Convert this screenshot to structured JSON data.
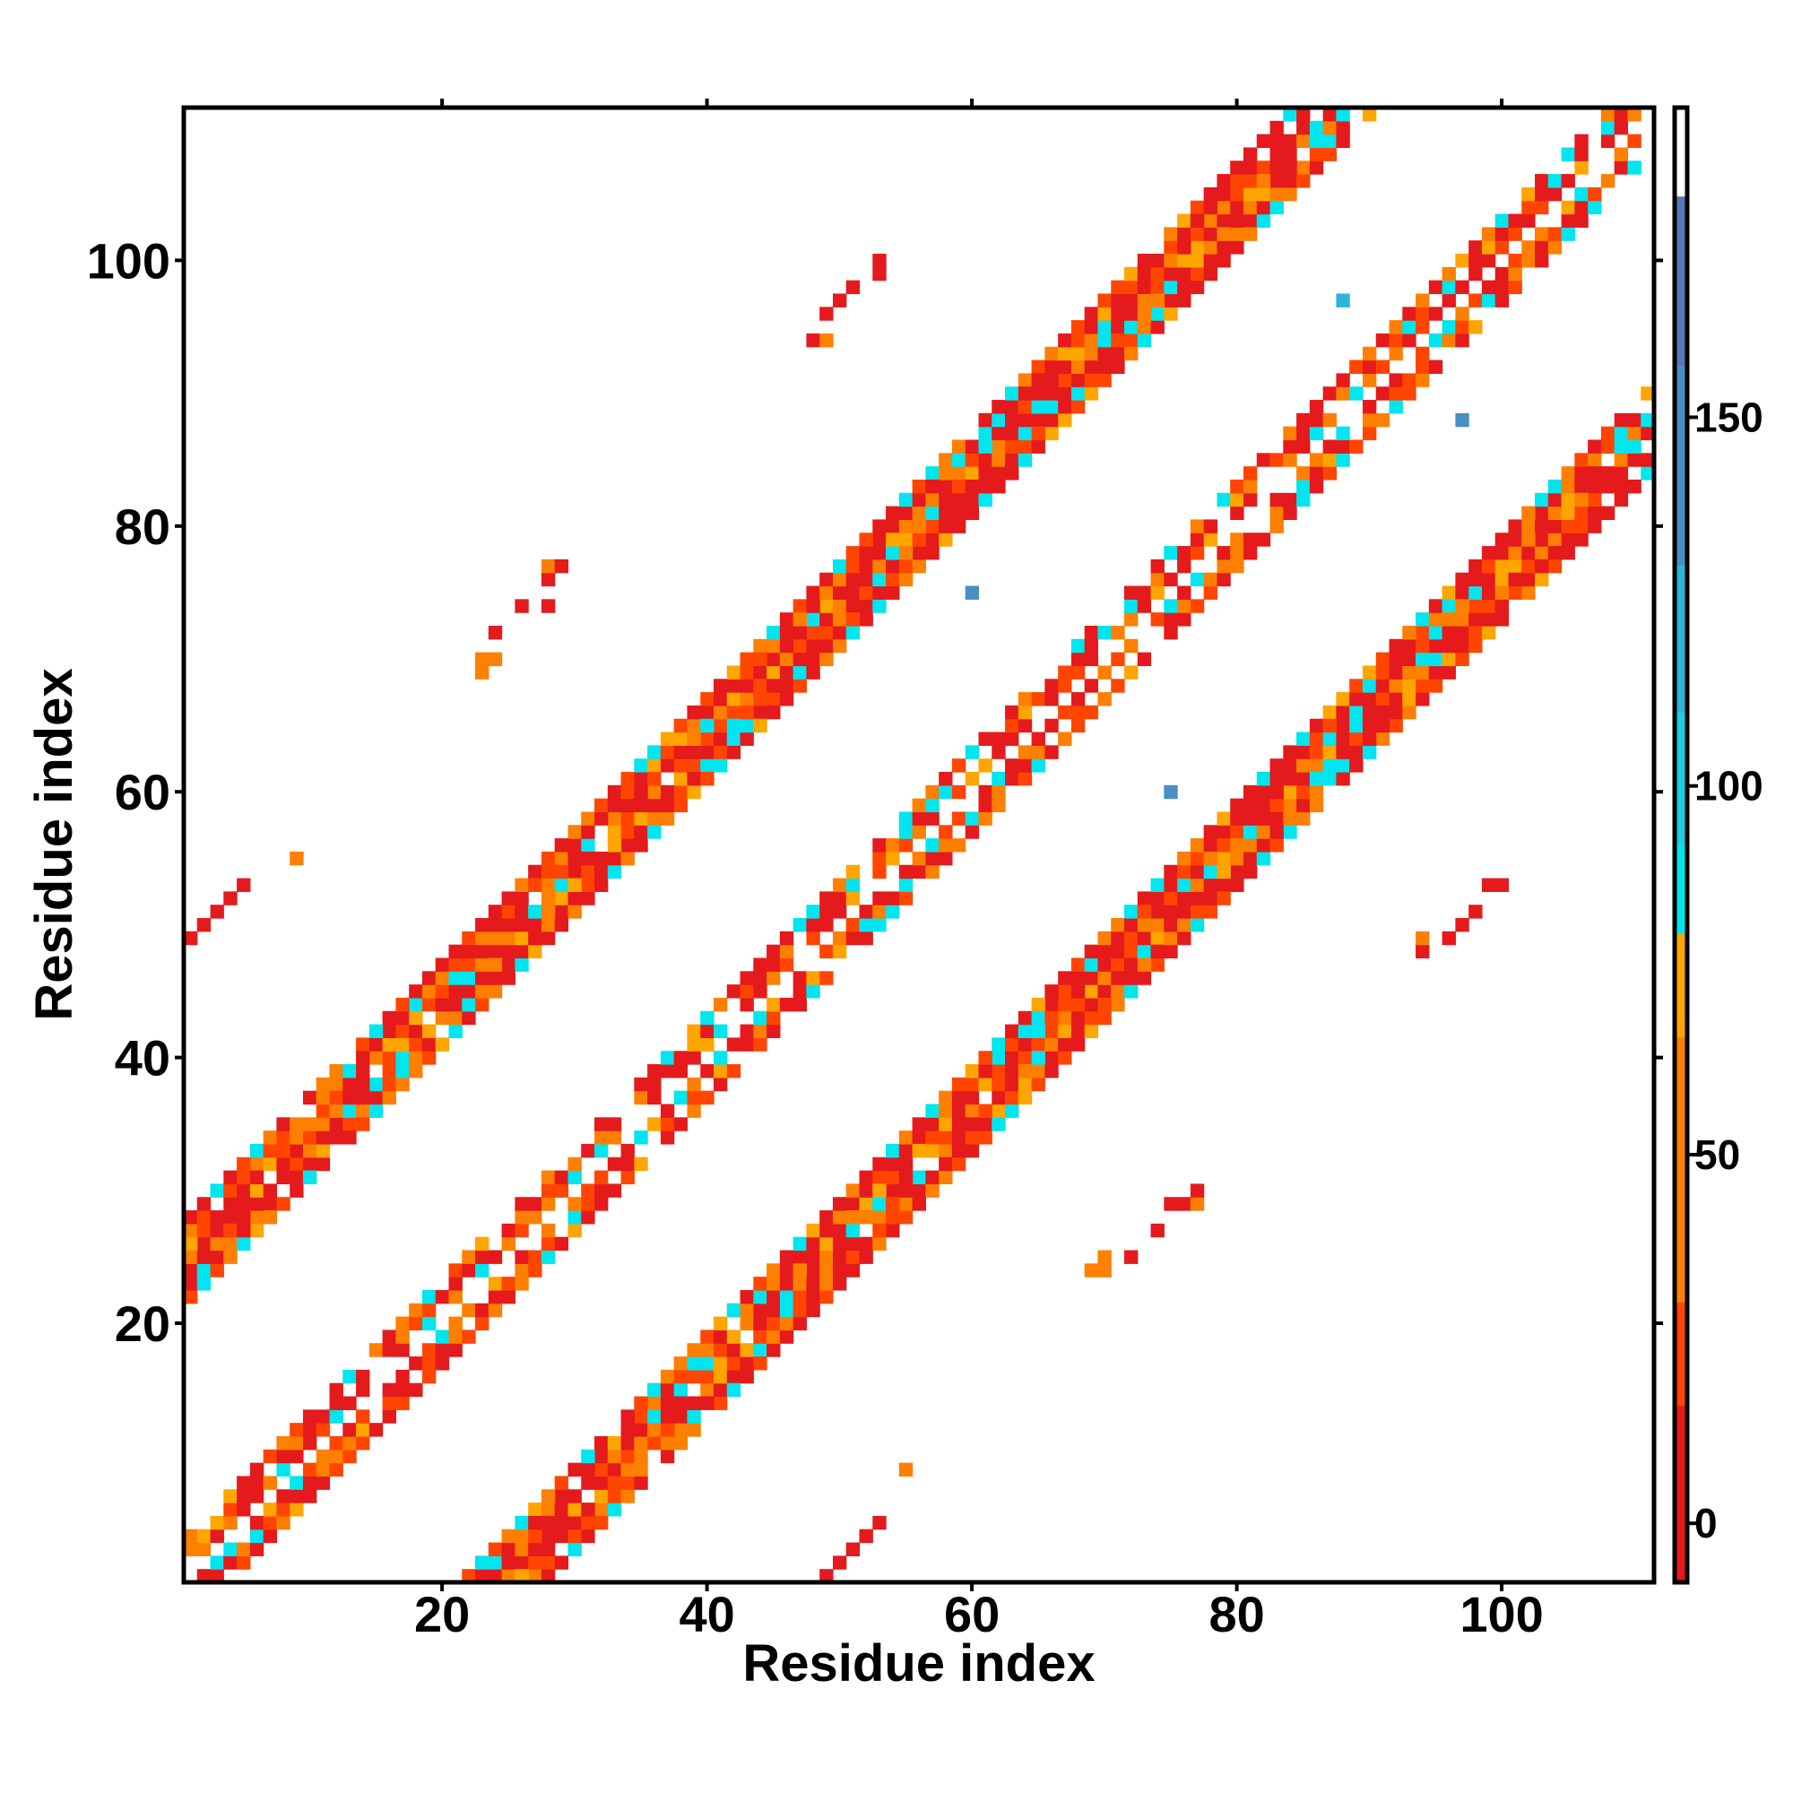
{
  "chart_data": {
    "type": "heatmap",
    "title": "",
    "xlabel": "Residue index",
    "ylabel": "Residue index",
    "xlim": [
      0.5,
      111.5
    ],
    "ylim": [
      0.5,
      111.5
    ],
    "xticks": [
      20,
      40,
      60,
      80,
      100
    ],
    "yticks": [
      20,
      40,
      60,
      80,
      100
    ],
    "colorbar": {
      "range": [
        -8,
        192
      ],
      "ticks": [
        0,
        50,
        100,
        150
      ],
      "bins": [
        {
          "from": -8,
          "to": 16,
          "color": "#e41a1c"
        },
        {
          "from": 16,
          "to": 30,
          "color": "#ff4500"
        },
        {
          "from": 30,
          "to": 66,
          "color": "#ff7f00"
        },
        {
          "from": 66,
          "to": 80,
          "color": "#ffa500"
        },
        {
          "from": 80,
          "to": 92,
          "color": "#00e5ee"
        },
        {
          "from": 92,
          "to": 110,
          "color": "#1ecde0"
        },
        {
          "from": 110,
          "to": 130,
          "color": "#2cb5d8"
        },
        {
          "from": 130,
          "to": 157,
          "color": "#4a8fc4"
        },
        {
          "from": 157,
          "to": 180,
          "color": "#5b77b8"
        },
        {
          "from": 180,
          "to": 192,
          "color": "#ffffff"
        }
      ]
    },
    "grid": false,
    "legend": "colorbar-right",
    "diagonal_bands": [
      {
        "i_start": 1,
        "i_end": 110,
        "offset": 0,
        "half_width": 3
      },
      {
        "i_start": 1,
        "i_end": 60,
        "offset": 24,
        "half_width": 3
      },
      {
        "i_start": 24,
        "i_end": 83,
        "offset": -24,
        "half_width": 3
      },
      {
        "i_start": 47,
        "i_end": 83,
        "offset": 24,
        "half_width": 3
      },
      {
        "i_start": 67,
        "i_end": 107,
        "offset": -24,
        "half_width": 3
      },
      {
        "i_start": 70,
        "i_end": 107,
        "offset": 24,
        "half_width": 3
      },
      {
        "i_start": 89,
        "i_end": 107,
        "offset": -24,
        "half_width": 3
      }
    ],
    "sparse_cells": [
      {
        "x": 1,
        "y": 49,
        "v": 5
      },
      {
        "x": 2,
        "y": 50,
        "v": 5
      },
      {
        "x": 3,
        "y": 51,
        "v": 5
      },
      {
        "x": 4,
        "y": 52,
        "v": 5
      },
      {
        "x": 5,
        "y": 53,
        "v": 5
      },
      {
        "x": 9,
        "y": 55,
        "v": 50
      },
      {
        "x": 23,
        "y": 69,
        "v": 50
      },
      {
        "x": 23,
        "y": 70,
        "v": 50
      },
      {
        "x": 24,
        "y": 70,
        "v": 50
      },
      {
        "x": 24,
        "y": 72,
        "v": 5
      },
      {
        "x": 26,
        "y": 74,
        "v": 5
      },
      {
        "x": 28,
        "y": 74,
        "v": 5
      },
      {
        "x": 28,
        "y": 76,
        "v": 5
      },
      {
        "x": 28,
        "y": 77,
        "v": 50
      },
      {
        "x": 29,
        "y": 77,
        "v": 5
      },
      {
        "x": 48,
        "y": 94,
        "v": 5
      },
      {
        "x": 49,
        "y": 94,
        "v": 50
      },
      {
        "x": 49,
        "y": 96,
        "v": 5
      },
      {
        "x": 50,
        "y": 97,
        "v": 5
      },
      {
        "x": 51,
        "y": 98,
        "v": 5
      },
      {
        "x": 53,
        "y": 99,
        "v": 5
      },
      {
        "x": 53,
        "y": 100,
        "v": 5
      },
      {
        "x": 60,
        "y": 75,
        "v": 140
      },
      {
        "x": 75,
        "y": 60,
        "v": 140
      },
      {
        "x": 49,
        "y": 1,
        "v": 5
      },
      {
        "x": 50,
        "y": 2,
        "v": 5
      },
      {
        "x": 51,
        "y": 3,
        "v": 5
      },
      {
        "x": 52,
        "y": 4,
        "v": 5
      },
      {
        "x": 53,
        "y": 5,
        "v": 5
      },
      {
        "x": 55,
        "y": 9,
        "v": 50
      },
      {
        "x": 69,
        "y": 24,
        "v": 50
      },
      {
        "x": 70,
        "y": 24,
        "v": 50
      },
      {
        "x": 70,
        "y": 25,
        "v": 50
      },
      {
        "x": 72,
        "y": 25,
        "v": 5
      },
      {
        "x": 74,
        "y": 27,
        "v": 5
      },
      {
        "x": 75,
        "y": 29,
        "v": 5
      },
      {
        "x": 76,
        "y": 29,
        "v": 5
      },
      {
        "x": 77,
        "y": 29,
        "v": 50
      },
      {
        "x": 77,
        "y": 30,
        "v": 5
      },
      {
        "x": 94,
        "y": 48,
        "v": 5
      },
      {
        "x": 94,
        "y": 49,
        "v": 50
      },
      {
        "x": 96,
        "y": 49,
        "v": 5
      },
      {
        "x": 97,
        "y": 50,
        "v": 5
      },
      {
        "x": 98,
        "y": 51,
        "v": 5
      },
      {
        "x": 99,
        "y": 53,
        "v": 5
      },
      {
        "x": 100,
        "y": 53,
        "v": 5
      },
      {
        "x": 88,
        "y": 97,
        "v": 120
      },
      {
        "x": 97,
        "y": 88,
        "v": 130
      },
      {
        "x": 85,
        "y": 59,
        "v": 5
      },
      {
        "x": 86,
        "y": 60,
        "v": 50
      },
      {
        "x": 87,
        "y": 62,
        "v": 85
      },
      {
        "x": 87,
        "y": 63,
        "v": 70
      }
    ]
  }
}
